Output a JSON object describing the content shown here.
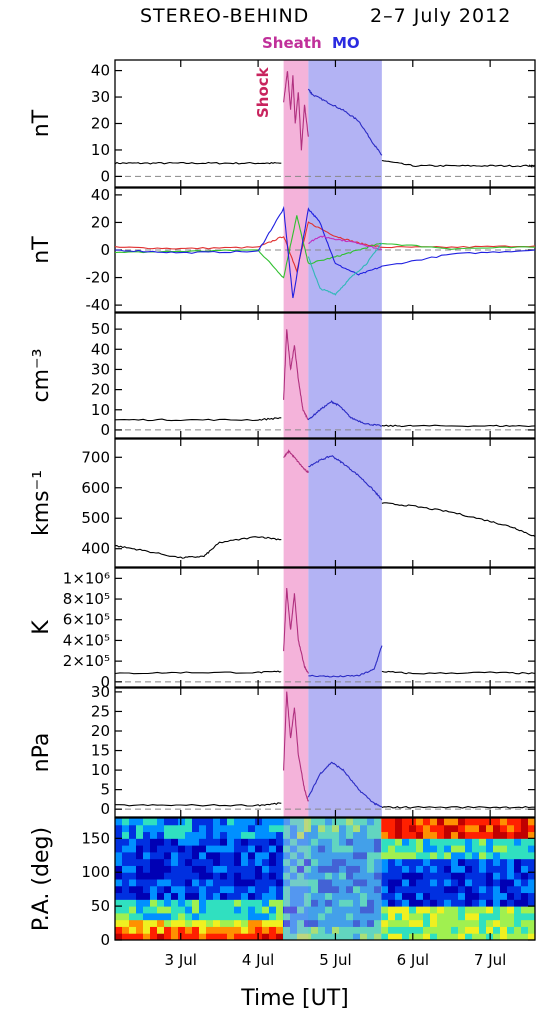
{
  "title": {
    "spacecraft": "STEREO-BEHIND",
    "dates": "2–7 July 2012"
  },
  "labels": {
    "sheath": "Sheath",
    "mo": "MO",
    "shock": "Shock",
    "xlabel": "Time [UT]"
  },
  "colors": {
    "sheath_band": "#f2a6d4",
    "mo_band": "#a6a6f2",
    "sheath_trace": "#b0307f",
    "mo_trace": "#2b2bc4",
    "shock_text": "#c8245e",
    "sheath_text": "#c0309a",
    "mo_text": "#2b2be0",
    "component_red": "#e03030",
    "component_green": "#30c030",
    "component_blue": "#2020e0",
    "component_magenta": "#c030c0",
    "component_cyan": "#30b8b8"
  },
  "chart_data": {
    "type": "line",
    "x_axis": {
      "unit": "days of July 2012",
      "range": [
        2.15,
        7.58
      ],
      "ticks": [
        3,
        4,
        5,
        6,
        7
      ],
      "tick_labels": [
        "3 Jul",
        "4 Jul",
        "5 Jul",
        "6 Jul",
        "7 Jul"
      ]
    },
    "intervals": {
      "shock_time": 4.33,
      "sheath": [
        4.33,
        4.65
      ],
      "mo": [
        4.65,
        5.6
      ]
    },
    "panels": [
      {
        "ylabel": "nT",
        "ylim": [
          -4,
          44
        ],
        "yticks": [
          0,
          10,
          20,
          30,
          40
        ],
        "ytick_labels": [
          "0",
          "10",
          "20",
          "30",
          "40"
        ],
        "dashed_zero": true,
        "series": [
          {
            "x": [
              2.15,
              2.5,
              3.0,
              3.5,
              4.0,
              4.3
            ],
            "y": [
              5,
              5,
              5,
              5,
              5,
              5
            ]
          },
          {
            "x": [
              4.33,
              4.38,
              4.42,
              4.45,
              4.48,
              4.52,
              4.56,
              4.6,
              4.65
            ],
            "y": [
              28,
              40,
              25,
              38,
              20,
              32,
              10,
              27,
              15
            ]
          },
          {
            "x": [
              4.65,
              4.7,
              4.9,
              5.1,
              5.3,
              5.5,
              5.6
            ],
            "y": [
              33,
              31,
              28,
              25,
              21,
              12,
              8
            ]
          },
          {
            "x": [
              5.6,
              6.0,
              6.5,
              7.0,
              7.5,
              7.58
            ],
            "y": [
              6,
              4,
              4,
              4,
              4,
              4
            ]
          }
        ]
      },
      {
        "ylabel": "nT",
        "ylim": [
          -45,
          45
        ],
        "yticks": [
          -40,
          -20,
          0,
          20,
          40
        ],
        "ytick_labels": [
          "-40",
          "-20",
          "0",
          "20",
          "40"
        ],
        "dashed_zero": true,
        "series": [
          {
            "name": "red",
            "x": [
              2.15,
              3.0,
              4.0,
              4.33,
              4.5,
              4.65,
              5.0,
              5.3,
              5.6,
              6.5,
              7.58
            ],
            "y": [
              2,
              1,
              2,
              10,
              -15,
              20,
              10,
              5,
              2,
              2,
              3
            ]
          },
          {
            "name": "green",
            "x": [
              2.15,
              3.0,
              4.0,
              4.33,
              4.5,
              4.65,
              5.0,
              5.3,
              5.6,
              6.5,
              7.58
            ],
            "y": [
              -2,
              -1,
              0,
              -20,
              25,
              -10,
              -5,
              0,
              5,
              1,
              2
            ]
          },
          {
            "name": "blue",
            "x": [
              2.15,
              3.0,
              4.0,
              4.33,
              4.45,
              4.65,
              4.8,
              5.0,
              5.3,
              5.6,
              6.5,
              7.58
            ],
            "y": [
              0,
              -2,
              -1,
              30,
              -35,
              30,
              20,
              -10,
              -18,
              -12,
              -3,
              0
            ]
          },
          {
            "name": "magenta",
            "x": [
              4.65,
              4.8,
              5.0,
              5.3,
              5.6
            ],
            "y": [
              5,
              10,
              8,
              5,
              0
            ]
          },
          {
            "name": "cyan",
            "x": [
              4.65,
              4.8,
              5.0,
              5.2,
              5.4,
              5.6
            ],
            "y": [
              -5,
              -28,
              -32,
              -20,
              -10,
              5
            ]
          }
        ]
      },
      {
        "ylabel": "cm⁻³",
        "ylim": [
          -4,
          58
        ],
        "yticks": [
          0,
          10,
          20,
          30,
          40,
          50
        ],
        "ytick_labels": [
          "0",
          "10",
          "20",
          "30",
          "40",
          "50"
        ],
        "dashed_zero": true,
        "series": [
          {
            "x": [
              2.15,
              3.0,
              4.0,
              4.3
            ],
            "y": [
              5,
              5,
              5,
              6
            ]
          },
          {
            "x": [
              4.33,
              4.37,
              4.42,
              4.47,
              4.52,
              4.58,
              4.65
            ],
            "y": [
              15,
              50,
              30,
              42,
              25,
              10,
              5
            ]
          },
          {
            "x": [
              4.65,
              4.8,
              4.95,
              5.05,
              5.2,
              5.4,
              5.6
            ],
            "y": [
              5,
              10,
              14,
              12,
              6,
              3,
              2
            ]
          },
          {
            "x": [
              5.6,
              6.0,
              7.0,
              7.58
            ],
            "y": [
              2,
              2,
              2,
              2
            ]
          }
        ]
      },
      {
        "ylabel": "kms⁻¹",
        "ylim": [
          340,
          760
        ],
        "yticks": [
          400,
          500,
          600,
          700
        ],
        "ytick_labels": [
          "400",
          "500",
          "600",
          "700"
        ],
        "dashed_zero": false,
        "series": [
          {
            "x": [
              2.15,
              2.5,
              3.0,
              3.3,
              3.5,
              4.0,
              4.3
            ],
            "y": [
              410,
              395,
              370,
              375,
              420,
              440,
              430
            ]
          },
          {
            "x": [
              4.33,
              4.4,
              4.5,
              4.6,
              4.65
            ],
            "y": [
              700,
              720,
              690,
              660,
              650
            ]
          },
          {
            "x": [
              4.65,
              4.8,
              4.95,
              5.1,
              5.3,
              5.5,
              5.6
            ],
            "y": [
              670,
              690,
              705,
              680,
              640,
              590,
              560
            ]
          },
          {
            "x": [
              5.6,
              6.0,
              6.5,
              7.0,
              7.3,
              7.58
            ],
            "y": [
              550,
              540,
              520,
              490,
              470,
              440
            ]
          }
        ]
      },
      {
        "ylabel": "K",
        "ylim": [
          -50000,
          1100000
        ],
        "yticks": [
          0,
          200000,
          400000,
          600000,
          800000,
          1000000
        ],
        "ytick_labels": [
          "0",
          "2×10⁵",
          "4×10⁵",
          "6×10⁵",
          "8×10⁵",
          "1×10⁶"
        ],
        "dashed_zero": true,
        "series": [
          {
            "x": [
              2.15,
              3.0,
              4.0,
              4.3
            ],
            "y": [
              80000,
              90000,
              90000,
              100000
            ]
          },
          {
            "x": [
              4.33,
              4.37,
              4.42,
              4.47,
              4.52,
              4.6,
              4.65
            ],
            "y": [
              300000,
              900000,
              500000,
              850000,
              400000,
              150000,
              80000
            ]
          },
          {
            "x": [
              4.65,
              5.0,
              5.3,
              5.5,
              5.6
            ],
            "y": [
              60000,
              50000,
              60000,
              120000,
              350000
            ]
          },
          {
            "x": [
              5.6,
              6.0,
              7.0,
              7.58
            ],
            "y": [
              100000,
              80000,
              90000,
              80000
            ]
          }
        ]
      },
      {
        "ylabel": "nPa",
        "ylim": [
          -2,
          31
        ],
        "yticks": [
          0,
          5,
          10,
          15,
          20,
          25,
          30
        ],
        "ytick_labels": [
          "0",
          "5",
          "10",
          "15",
          "20",
          "25",
          "30"
        ],
        "dashed_zero": true,
        "series": [
          {
            "x": [
              2.15,
              3.0,
              4.0,
              4.3
            ],
            "y": [
              1,
              1,
              1,
              1.5
            ]
          },
          {
            "x": [
              4.33,
              4.37,
              4.42,
              4.47,
              4.52,
              4.6,
              4.65
            ],
            "y": [
              10,
              30,
              18,
              26,
              14,
              5,
              2
            ]
          },
          {
            "x": [
              4.65,
              4.8,
              4.95,
              5.1,
              5.3,
              5.5,
              5.6
            ],
            "y": [
              3,
              9,
              12,
              10,
              5,
              1.5,
              0.5
            ]
          },
          {
            "x": [
              5.6,
              6.0,
              7.0,
              7.58
            ],
            "y": [
              0.5,
              0.5,
              0.5,
              0.5
            ]
          }
        ]
      },
      {
        "type": "heatmap",
        "ylabel": "P.A. (deg)",
        "ylim": [
          0,
          180
        ],
        "yticks": [
          0,
          50,
          100,
          150
        ],
        "ytick_labels": [
          "0",
          "50",
          "100",
          "150"
        ]
      }
    ]
  }
}
